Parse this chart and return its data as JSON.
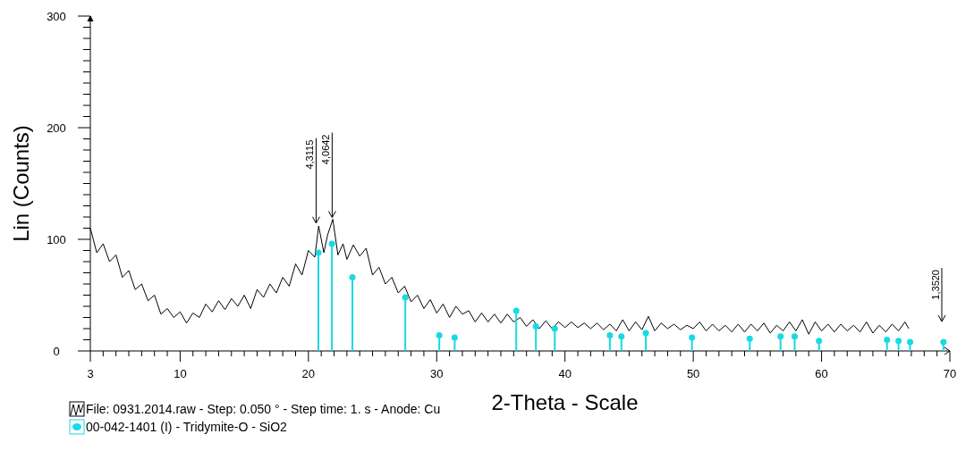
{
  "chart_data": {
    "type": "line",
    "xlabel": "2-Theta - Scale",
    "ylabel": "Lin (Counts)",
    "xlim": [
      3,
      70
    ],
    "ylim": [
      0,
      300
    ],
    "xticks": [
      3,
      {
        "value": 4,
        "label": null
      },
      {
        "value": 5,
        "label": null
      },
      {
        "value": 6,
        "label": null
      },
      {
        "value": 7,
        "label": null
      },
      {
        "value": 8,
        "label": null
      },
      {
        "value": 9,
        "label": null
      },
      10,
      {
        "value": 11,
        "label": null
      },
      {
        "value": 12,
        "label": null
      },
      {
        "value": 13,
        "label": null
      },
      {
        "value": 14,
        "label": null
      },
      {
        "value": 15,
        "label": null
      },
      {
        "value": 16,
        "label": null
      },
      {
        "value": 17,
        "label": null
      },
      {
        "value": 18,
        "label": null
      },
      {
        "value": 19,
        "label": null
      },
      20,
      {
        "value": 21,
        "label": null
      },
      {
        "value": 22,
        "label": null
      },
      {
        "value": 23,
        "label": null
      },
      {
        "value": 24,
        "label": null
      },
      {
        "value": 25,
        "label": null
      },
      {
        "value": 26,
        "label": null
      },
      {
        "value": 27,
        "label": null
      },
      {
        "value": 28,
        "label": null
      },
      {
        "value": 29,
        "label": null
      },
      30,
      {
        "value": 31,
        "label": null
      },
      {
        "value": 32,
        "label": null
      },
      {
        "value": 33,
        "label": null
      },
      {
        "value": 34,
        "label": null
      },
      {
        "value": 35,
        "label": null
      },
      {
        "value": 36,
        "label": null
      },
      {
        "value": 37,
        "label": null
      },
      {
        "value": 38,
        "label": null
      },
      {
        "value": 39,
        "label": null
      },
      40,
      {
        "value": 41,
        "label": null
      },
      {
        "value": 42,
        "label": null
      },
      {
        "value": 43,
        "label": null
      },
      {
        "value": 44,
        "label": null
      },
      {
        "value": 45,
        "label": null
      },
      {
        "value": 46,
        "label": null
      },
      {
        "value": 47,
        "label": null
      },
      {
        "value": 48,
        "label": null
      },
      {
        "value": 49,
        "label": null
      },
      50,
      {
        "value": 51,
        "label": null
      },
      {
        "value": 52,
        "label": null
      },
      {
        "value": 53,
        "label": null
      },
      {
        "value": 54,
        "label": null
      },
      {
        "value": 55,
        "label": null
      },
      {
        "value": 56,
        "label": null
      },
      {
        "value": 57,
        "label": null
      },
      {
        "value": 58,
        "label": null
      },
      {
        "value": 59,
        "label": null
      },
      60,
      {
        "value": 61,
        "label": null
      },
      {
        "value": 62,
        "label": null
      },
      {
        "value": 63,
        "label": null
      },
      {
        "value": 64,
        "label": null
      },
      {
        "value": 65,
        "label": null
      },
      {
        "value": 66,
        "label": null
      },
      {
        "value": 67,
        "label": null
      },
      {
        "value": 68,
        "label": null
      },
      {
        "value": 69,
        "label": null
      },
      70
    ],
    "yticks": [
      0,
      {
        "value": 10,
        "label": null
      },
      {
        "value": 20,
        "label": null
      },
      {
        "value": 30,
        "label": null
      },
      {
        "value": 40,
        "label": null
      },
      {
        "value": 50,
        "label": null
      },
      {
        "value": 60,
        "label": null
      },
      {
        "value": 70,
        "label": null
      },
      {
        "value": 80,
        "label": null
      },
      {
        "value": 90,
        "label": null
      },
      100,
      {
        "value": 110,
        "label": null
      },
      {
        "value": 120,
        "label": null
      },
      {
        "value": 130,
        "label": null
      },
      {
        "value": 140,
        "label": null
      },
      {
        "value": 150,
        "label": null
      },
      {
        "value": 160,
        "label": null
      },
      {
        "value": 170,
        "label": null
      },
      {
        "value": 180,
        "label": null
      },
      {
        "value": 190,
        "label": null
      },
      200,
      {
        "value": 210,
        "label": null
      },
      {
        "value": 220,
        "label": null
      },
      {
        "value": 230,
        "label": null
      },
      {
        "value": 240,
        "label": null
      },
      {
        "value": 250,
        "label": null
      },
      {
        "value": 260,
        "label": null
      },
      {
        "value": 270,
        "label": null
      },
      {
        "value": 280,
        "label": null
      },
      {
        "value": 290,
        "label": null
      },
      300
    ],
    "grid": false,
    "legend": "bottom",
    "series": [
      {
        "name": "File: 0931.2014.raw - Step: 0.050 ° - Step time: 1. s - Anode: Cu",
        "color": "#000000",
        "x": [
          3,
          3.5,
          4,
          4.5,
          5,
          5.5,
          6,
          6.5,
          7,
          7.5,
          8,
          8.5,
          9,
          9.5,
          10,
          10.5,
          11,
          11.5,
          12,
          12.5,
          13,
          13.5,
          14,
          14.5,
          15,
          15.5,
          16,
          16.5,
          17,
          17.5,
          18,
          18.5,
          19,
          19.5,
          20,
          20.5,
          20.8,
          21.2,
          21.5,
          21.9,
          22.3,
          22.7,
          23,
          23.5,
          24,
          24.5,
          25,
          25.5,
          26,
          26.5,
          27,
          27.5,
          28,
          28.5,
          29,
          29.5,
          30,
          30.5,
          31,
          31.5,
          32,
          32.5,
          33,
          33.5,
          34,
          34.5,
          35,
          35.5,
          36,
          36.5,
          37,
          37.5,
          38,
          38.5,
          39,
          39.5,
          40,
          40.5,
          41,
          41.5,
          42,
          42.5,
          43,
          43.5,
          44,
          44.5,
          45,
          45.5,
          46,
          46.5,
          47,
          47.5,
          48,
          48.5,
          49,
          49.5,
          50,
          50.5,
          51,
          51.5,
          52,
          52.5,
          53,
          53.5,
          54,
          54.5,
          55,
          55.5,
          56,
          56.5,
          57,
          57.5,
          58,
          58.5,
          59,
          59.5,
          60,
          60.5,
          61,
          61.5,
          62,
          62.5,
          63,
          63.5,
          64,
          64.5,
          65,
          65.5,
          66,
          66.5,
          66.8
        ],
        "values": [
          110,
          88,
          96,
          80,
          86,
          66,
          72,
          55,
          60,
          45,
          50,
          33,
          38,
          30,
          35,
          25,
          34,
          30,
          42,
          35,
          45,
          37,
          47,
          40,
          50,
          38,
          55,
          48,
          60,
          52,
          66,
          58,
          78,
          68,
          90,
          84,
          112,
          88,
          104,
          118,
          86,
          96,
          82,
          95,
          85,
          92,
          68,
          75,
          60,
          66,
          52,
          58,
          44,
          50,
          38,
          46,
          34,
          42,
          30,
          40,
          33,
          36,
          26,
          34,
          26,
          33,
          25,
          33,
          26,
          30,
          22,
          28,
          20,
          27,
          20,
          26,
          21,
          26,
          21,
          25,
          20,
          25,
          19,
          24,
          18,
          28,
          18,
          26,
          19,
          31,
          18,
          25,
          20,
          24,
          19,
          23,
          20,
          26,
          18,
          24,
          18,
          23,
          17,
          24,
          17,
          24,
          18,
          25,
          16,
          23,
          18,
          26,
          18,
          28,
          15,
          26,
          18,
          24,
          17,
          24,
          18,
          23,
          17,
          26,
          16,
          23,
          17,
          24,
          18,
          26,
          20
        ]
      },
      {
        "type": "lollipop",
        "name": "00-042-1401 (I) - Tridymite-O - SiO2",
        "color": "#19d9e3",
        "marker": "circle",
        "x": [
          20.78,
          21.83,
          23.43,
          27.55,
          30.2,
          31.4,
          36.2,
          37.73,
          39.2,
          43.5,
          44.4,
          46.3,
          49.9,
          54.4,
          56.8,
          57.9,
          59.8,
          65.1,
          66,
          66.9,
          69.5
        ],
        "values": [
          88,
          96,
          66,
          48,
          14,
          12,
          36,
          22,
          20,
          14,
          13,
          16,
          12,
          11,
          13,
          13,
          9,
          10,
          9,
          8,
          8
        ]
      }
    ],
    "annotations": [
      {
        "text": "4,3115",
        "x": 20.6,
        "y": 113
      },
      {
        "text": "4,0642",
        "x": 21.85,
        "y": 118
      },
      "1,3520"
    ]
  }
}
